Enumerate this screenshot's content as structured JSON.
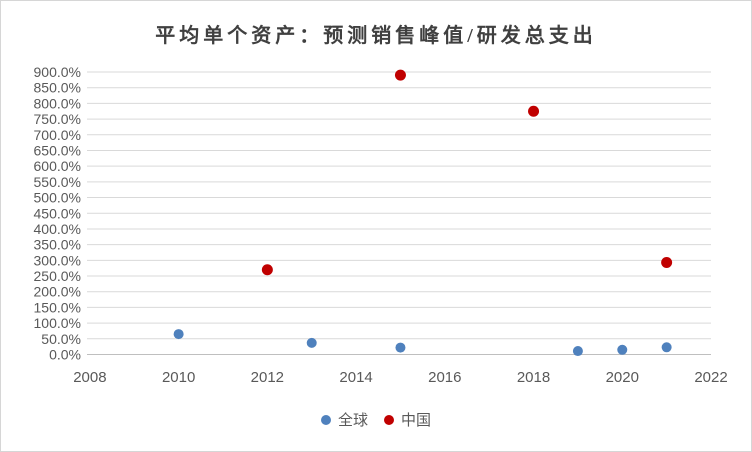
{
  "chart_data": {
    "type": "scatter",
    "title": "平均单个资产：预测销售峰值/研发总支出",
    "xlabel": "",
    "ylabel": "",
    "xlim": [
      2008,
      2022
    ],
    "ylim_percent": [
      0,
      900
    ],
    "y_tick_step_percent": 50,
    "grid": true,
    "legend_position": "bottom",
    "x_tick_labels": [
      "2008",
      "2010",
      "2012",
      "2014",
      "2016",
      "2018",
      "2020",
      "2022"
    ],
    "y_tick_labels": [
      "0.0%",
      "50.0%",
      "100.0%",
      "150.0%",
      "200.0%",
      "250.0%",
      "300.0%",
      "350.0%",
      "400.0%",
      "450.0%",
      "500.0%",
      "550.0%",
      "600.0%",
      "650.0%",
      "700.0%",
      "750.0%",
      "800.0%",
      "850.0%",
      "900.0%"
    ],
    "series": [
      {
        "name": "全球",
        "color": "#4f81bd",
        "marker_radius": 5,
        "points": [
          {
            "x": 2010,
            "y_percent": 65
          },
          {
            "x": 2013,
            "y_percent": 37
          },
          {
            "x": 2015,
            "y_percent": 22
          },
          {
            "x": 2019,
            "y_percent": 11
          },
          {
            "x": 2020,
            "y_percent": 15
          },
          {
            "x": 2021,
            "y_percent": 23
          }
        ]
      },
      {
        "name": "中国",
        "color": "#c00000",
        "marker_radius": 5.5,
        "points": [
          {
            "x": 2012,
            "y_percent": 270
          },
          {
            "x": 2015,
            "y_percent": 890
          },
          {
            "x": 2018,
            "y_percent": 775
          },
          {
            "x": 2021,
            "y_percent": 293
          }
        ]
      }
    ],
    "colors": {
      "gridline": "#d9d9d9",
      "axis_line": "#bfbfbf",
      "tick_text": "#595959",
      "title_text": "#404040",
      "background": "#ffffff"
    }
  },
  "legend": {
    "items": [
      {
        "label": "全球"
      },
      {
        "label": "中国"
      }
    ]
  }
}
